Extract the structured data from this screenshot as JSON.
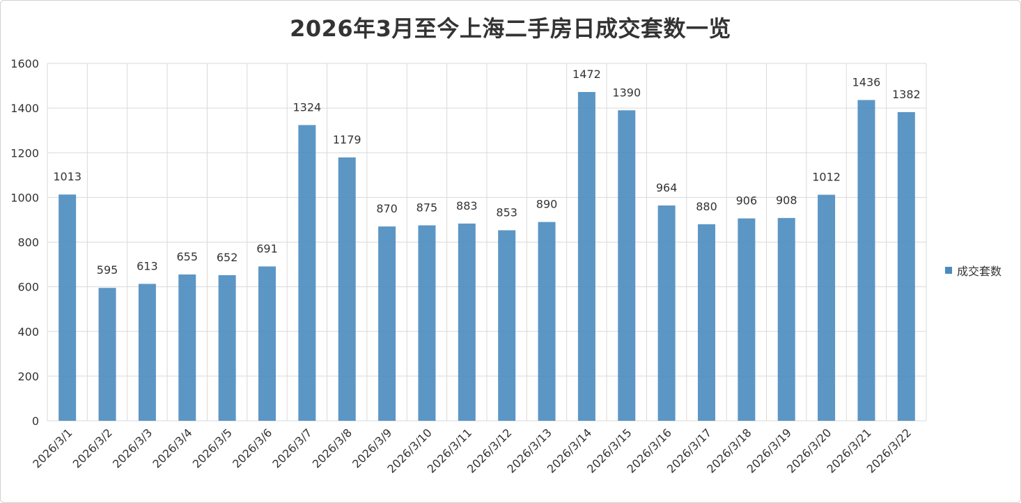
{
  "chart_data": {
    "type": "bar",
    "title": "2026年3月至今上海二手房日成交套数一览",
    "categories": [
      "2026/3/1",
      "2026/3/2",
      "2026/3/3",
      "2026/3/4",
      "2026/3/5",
      "2026/3/6",
      "2026/3/7",
      "2026/3/8",
      "2026/3/9",
      "2026/3/10",
      "2026/3/11",
      "2026/3/12",
      "2026/3/13",
      "2026/3/14",
      "2026/3/15",
      "2026/3/16",
      "2026/3/17",
      "2026/3/18",
      "2026/3/19",
      "2026/3/20",
      "2026/3/21",
      "2026/3/22"
    ],
    "series": [
      {
        "name": "成交套数",
        "color": "#4a8bbf",
        "values": [
          1013,
          595,
          613,
          655,
          652,
          691,
          1324,
          1179,
          870,
          875,
          883,
          853,
          890,
          1472,
          1390,
          964,
          880,
          906,
          908,
          1012,
          1436,
          1382
        ]
      }
    ],
    "ylim": [
      0,
      1600
    ],
    "yticks": [
      0,
      200,
      400,
      600,
      800,
      1000,
      1200,
      1400,
      1600
    ],
    "grid": true,
    "data_labels": true,
    "legend_position": "right"
  }
}
